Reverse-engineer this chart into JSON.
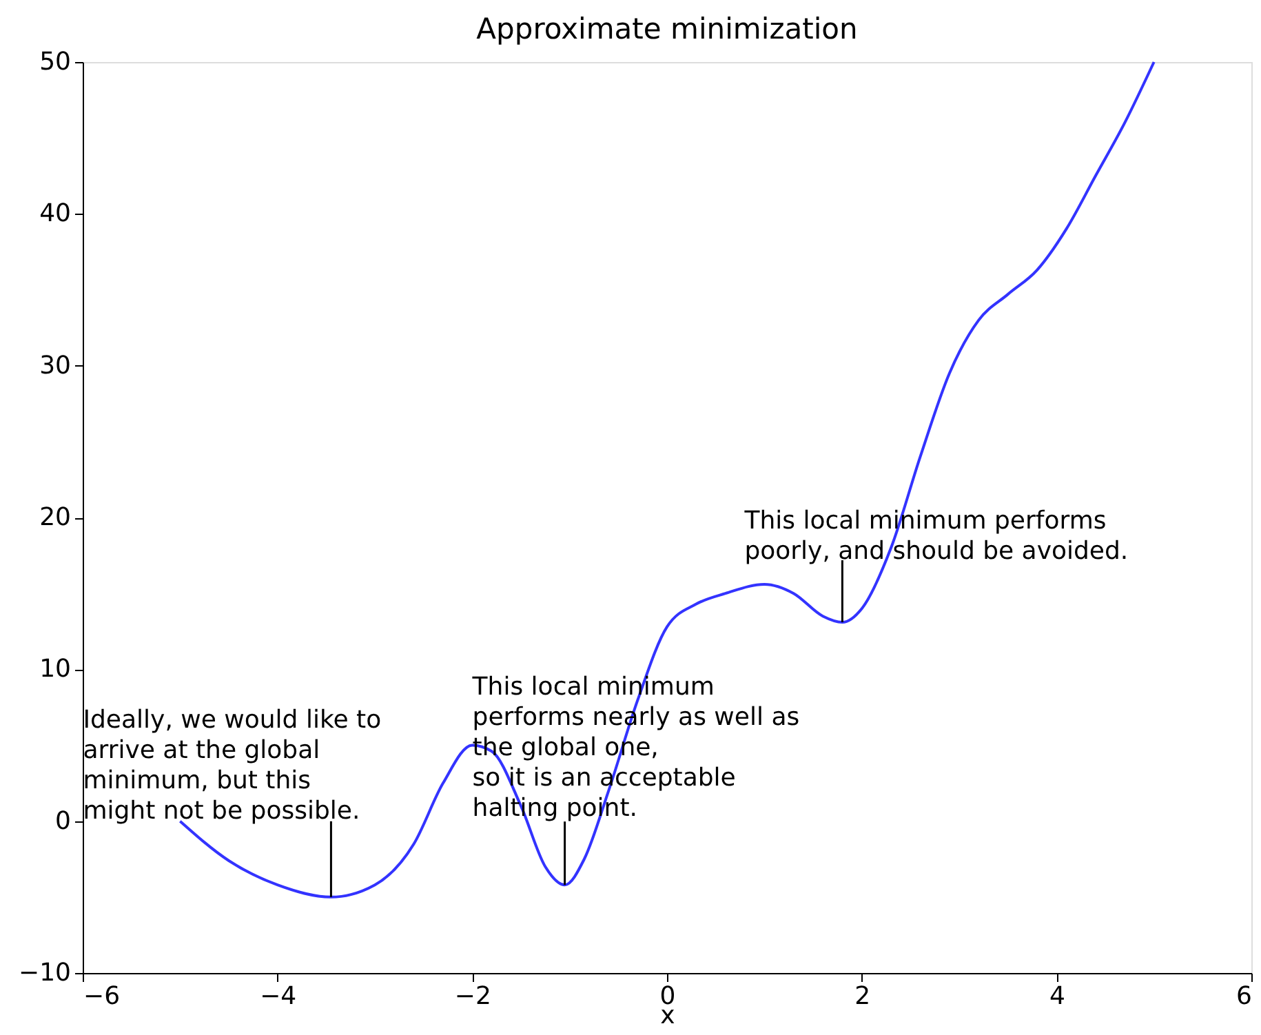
{
  "chart_data": {
    "type": "line",
    "title": "Approximate minimization",
    "xlabel": "x",
    "x": [
      -5,
      -4.5,
      -4,
      -3.45,
      -3,
      -2.6,
      -2.3,
      -2.0,
      -1.8,
      -1.5,
      -1.25,
      -1.05,
      -0.85,
      -0.6,
      -0.3,
      0,
      0.3,
      0.6,
      1.0,
      1.3,
      1.6,
      1.8,
      2.0,
      2.3,
      2.6,
      2.9,
      3.2,
      3.5,
      3.8,
      4.1,
      4.4,
      4.7,
      5.0
    ],
    "series": [
      {
        "color": "#3333ff",
        "values": [
          0,
          -2.6,
          -4.2,
          -5,
          -4.2,
          -1.5,
          2.5,
          5,
          4.6,
          1,
          -3,
          -4.2,
          -2.5,
          2,
          8,
          12.8,
          14.3,
          15,
          15.6,
          15,
          13.5,
          13.1,
          14,
          18,
          24,
          29.5,
          33,
          34.7,
          36.3,
          39,
          42.5,
          46,
          50
        ]
      }
    ],
    "annotations": [
      {
        "text": "Ideally, we would like to\n arrive at the global\n minimum, but this\nmight not be possible.",
        "x": -3.45,
        "y": -5
      },
      {
        "text": "This local minimum\nperforms nearly as well as\nthe global one,\nso it is an acceptable\nhalting point.",
        "x": -1.05,
        "y": -4.2
      },
      {
        "text": "This local minimum performs\npoorly, and should be avoided.",
        "x": 1.8,
        "y": 13.1
      }
    ],
    "xlim": [
      -6,
      6
    ],
    "xticks": [
      -6,
      -4,
      -2,
      0,
      2,
      4,
      6
    ],
    "ylim": [
      -10,
      50
    ],
    "yticks": [
      -10,
      0,
      10,
      20,
      30,
      40,
      50
    ],
    "grid": false,
    "line_style": "solid",
    "marker": "none"
  }
}
